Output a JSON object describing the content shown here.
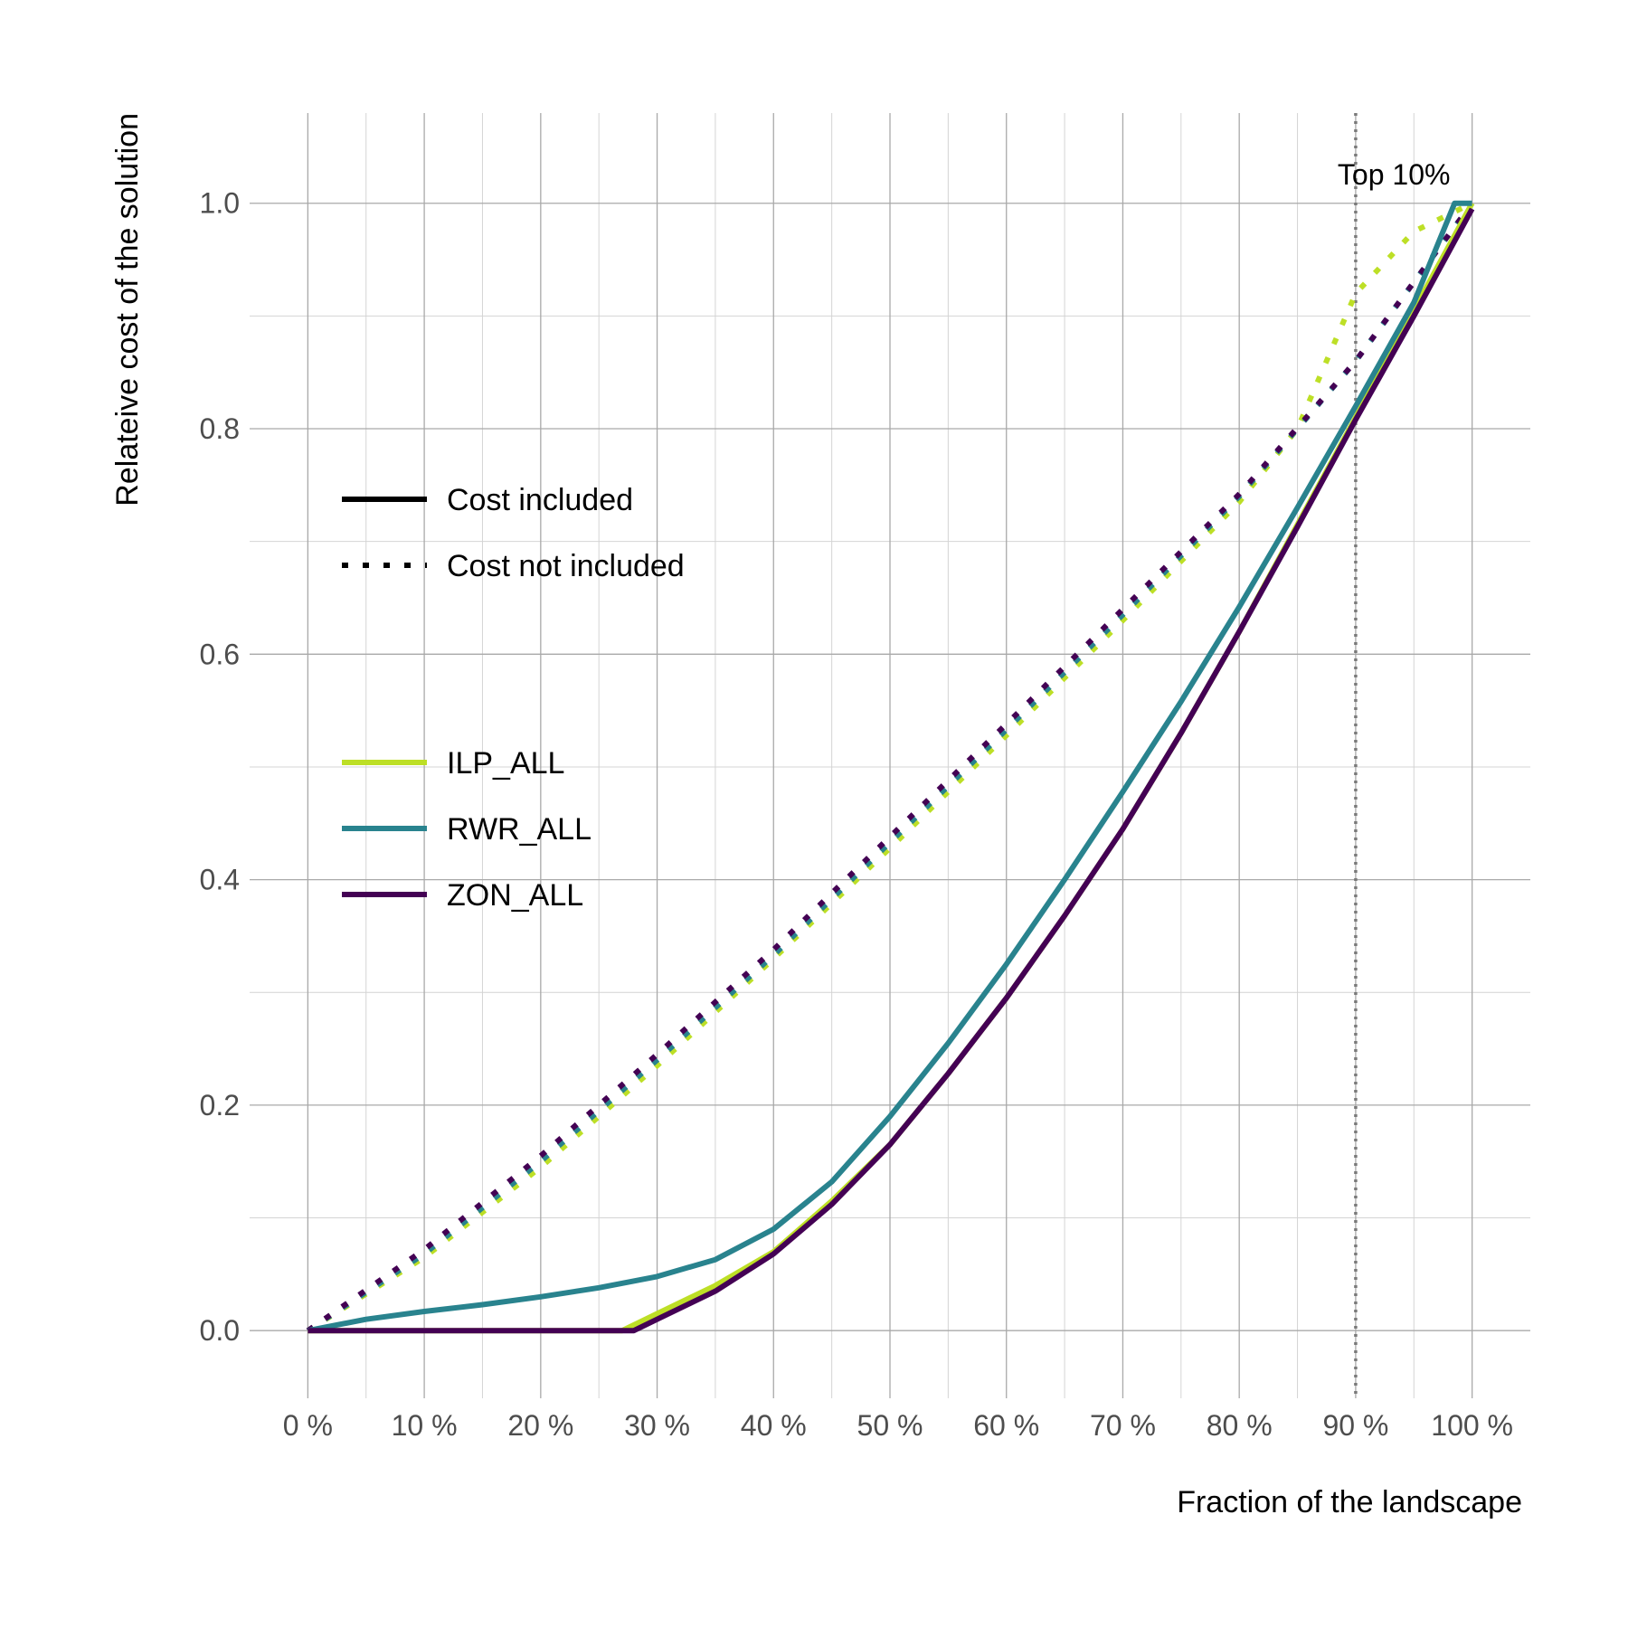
{
  "chart_data": {
    "type": "line",
    "xlabel": "Fraction of the landscape",
    "ylabel": "Relateive cost of the solution",
    "xlim": [
      -0.05,
      1.05
    ],
    "ylim": [
      -0.06,
      1.08
    ],
    "x_ticks": [
      0,
      0.1,
      0.2,
      0.3,
      0.4,
      0.5,
      0.6,
      0.7,
      0.8,
      0.9,
      1.0
    ],
    "x_tick_labels": [
      "0 %",
      "10 %",
      "20 %",
      "30 %",
      "40 %",
      "50 %",
      "60 %",
      "70 %",
      "80 %",
      "90 %",
      "100 %"
    ],
    "y_ticks": [
      0,
      0.2,
      0.4,
      0.6,
      0.8,
      1.0
    ],
    "y_tick_labels": [
      "0.0",
      "0.2",
      "0.4",
      "0.6",
      "0.8",
      "1.0"
    ],
    "grid": true,
    "legend_position": "left",
    "legend_linetype": [
      {
        "name": "Cost included",
        "style": "solid"
      },
      {
        "name": "Cost not included",
        "style": "dotted"
      }
    ],
    "legend_series": [
      {
        "name": "ILP_ALL",
        "color": "#bddf26"
      },
      {
        "name": "RWR_ALL",
        "color": "#29838e"
      },
      {
        "name": "ZON_ALL",
        "color": "#440154"
      }
    ],
    "annotations": [
      {
        "type": "vline",
        "x": 0.9,
        "style": "dotted",
        "color": "#7a7a7a",
        "label": "Top 10%"
      }
    ],
    "series": [
      {
        "name": "ILP_ALL",
        "linetype": "solid",
        "color": "#bddf26",
        "x": [
          0,
          0.05,
          0.1,
          0.15,
          0.2,
          0.25,
          0.27,
          0.3,
          0.35,
          0.4,
          0.45,
          0.5,
          0.55,
          0.6,
          0.65,
          0.7,
          0.75,
          0.8,
          0.85,
          0.9,
          0.95,
          1.0
        ],
        "y": [
          0,
          0,
          0,
          0,
          0,
          0,
          0,
          0.015,
          0.04,
          0.07,
          0.115,
          0.165,
          0.228,
          0.295,
          0.368,
          0.445,
          0.53,
          0.62,
          0.715,
          0.81,
          0.905,
          1.0
        ]
      },
      {
        "name": "RWR_ALL",
        "linetype": "solid",
        "color": "#29838e",
        "x": [
          0,
          0.05,
          0.1,
          0.15,
          0.2,
          0.25,
          0.3,
          0.35,
          0.4,
          0.45,
          0.5,
          0.55,
          0.6,
          0.65,
          0.7,
          0.75,
          0.8,
          0.85,
          0.9,
          0.95,
          0.985,
          1.0
        ],
        "y": [
          0,
          0.01,
          0.017,
          0.023,
          0.03,
          0.038,
          0.048,
          0.063,
          0.09,
          0.132,
          0.19,
          0.255,
          0.325,
          0.4,
          0.478,
          0.558,
          0.642,
          0.73,
          0.82,
          0.912,
          1.0,
          1.0
        ]
      },
      {
        "name": "ZON_ALL",
        "linetype": "solid",
        "color": "#440154",
        "x": [
          0,
          0.05,
          0.1,
          0.15,
          0.2,
          0.25,
          0.28,
          0.3,
          0.35,
          0.4,
          0.45,
          0.5,
          0.55,
          0.6,
          0.65,
          0.7,
          0.75,
          0.8,
          0.85,
          0.9,
          0.95,
          1.0
        ],
        "y": [
          0,
          0,
          0,
          0,
          0,
          0,
          0,
          0.01,
          0.035,
          0.068,
          0.112,
          0.165,
          0.228,
          0.295,
          0.368,
          0.445,
          0.53,
          0.62,
          0.713,
          0.808,
          0.9,
          0.995
        ]
      },
      {
        "name": "ILP_ALL",
        "linetype": "dotted",
        "color": "#bddf26",
        "x": [
          0,
          0.1,
          0.2,
          0.3,
          0.4,
          0.5,
          0.6,
          0.7,
          0.8,
          0.85,
          0.9,
          0.95,
          0.98,
          1.0
        ],
        "y": [
          0,
          0.065,
          0.145,
          0.235,
          0.33,
          0.428,
          0.528,
          0.63,
          0.735,
          0.8,
          0.92,
          0.975,
          0.99,
          1.0
        ]
      },
      {
        "name": "RWR_ALL",
        "linetype": "dotted",
        "color": "#29838e",
        "x": [
          0,
          0.1,
          0.2,
          0.3,
          0.4,
          0.5,
          0.6,
          0.7,
          0.8,
          0.9,
          1.0
        ],
        "y": [
          0,
          0.068,
          0.15,
          0.24,
          0.333,
          0.433,
          0.533,
          0.635,
          0.74,
          0.86,
          1.0
        ]
      },
      {
        "name": "ZON_ALL",
        "linetype": "dotted",
        "color": "#440154",
        "x": [
          0,
          0.1,
          0.2,
          0.3,
          0.4,
          0.5,
          0.6,
          0.7,
          0.8,
          0.9,
          1.0
        ],
        "y": [
          0,
          0.072,
          0.155,
          0.245,
          0.338,
          0.438,
          0.538,
          0.64,
          0.742,
          0.86,
          1.0
        ]
      }
    ]
  }
}
